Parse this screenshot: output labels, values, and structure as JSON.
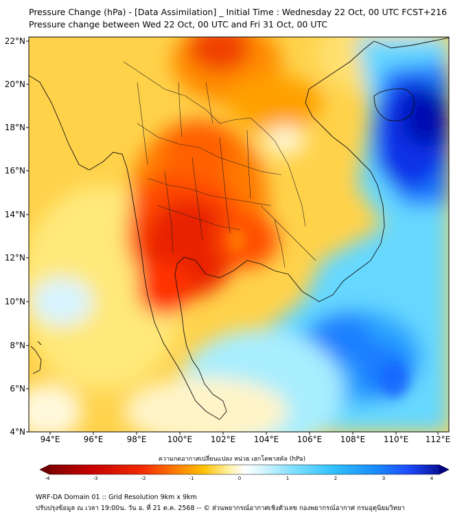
{
  "title": {
    "line1": "Pressure Change (hPa) - [Data Assimilation] _ Initial Time : Wednesday 22 Oct, 00 UTC FCST+216",
    "line2": "Pressure change between Wed 22 Oct, 00 UTC and Fri 31 Oct, 00 UTC"
  },
  "map": {
    "lat_labels": [
      "22°N",
      "20°N",
      "18°N",
      "16°N",
      "14°N",
      "12°N",
      "10°N",
      "8°N",
      "6°N",
      "4°N"
    ],
    "lon_labels": [
      "94°E",
      "96°E",
      "98°E",
      "100°E",
      "102°E",
      "104°E",
      "106°E",
      "108°E",
      "110°E",
      "112°E"
    ],
    "lat_range": [
      4,
      22.3
    ],
    "lon_range": [
      93,
      112.5
    ]
  },
  "colorbar": {
    "label": "ความกดอากาศเปลี่ยนแปลง หน่วย เฮกโตพาสคัล (hPa)",
    "ticks": [
      "-4",
      "-3",
      "-2",
      "-1",
      "0",
      "1",
      "2",
      "3",
      "4"
    ],
    "range": [
      -4,
      4
    ],
    "colors": [
      "#7a0000",
      "#c40000",
      "#f01a00",
      "#ff6a00",
      "#ffb000",
      "#ffe030",
      "#fff6c8",
      "#ffffff",
      "#d6f6ff",
      "#8ee8ff",
      "#3ccaff",
      "#1aa0ff",
      "#2060ff",
      "#1030e0",
      "#000080"
    ]
  },
  "footer": {
    "line1": "WRF-DA Domain 01 :: Grid Resolution 9km x 9km",
    "line2": "ปรับปรุงข้อมูล ณ เวลา 19:00น. วัน อ. ที่ 21 ต.ค. 2568 -- © ส่วนพยากรณ์อากาศเชิงตัวเลข กองพยากรณ์อากาศ กรมอุตุนิยมวิทยา"
  }
}
